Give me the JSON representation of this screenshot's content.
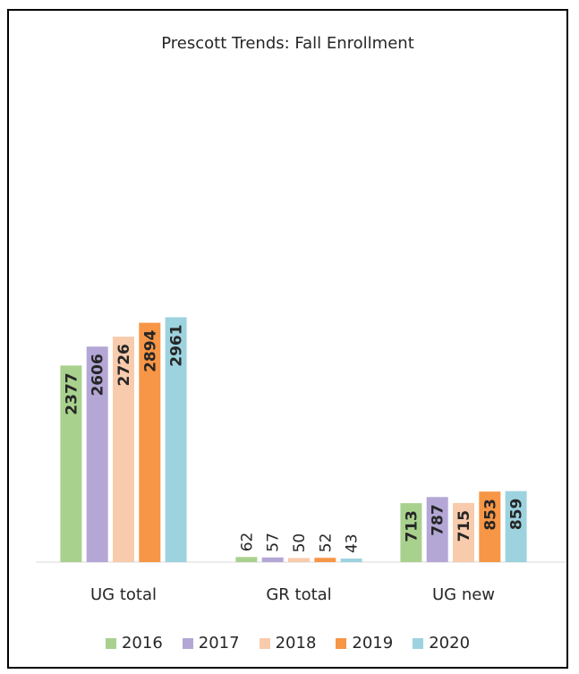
{
  "chart_data": {
    "type": "bar",
    "title": "Prescott Trends: Fall Enrollment",
    "categories": [
      "UG total",
      "GR total",
      "UG new"
    ],
    "series": [
      {
        "name": "2016",
        "color": "#a9d18e",
        "values": [
          2377,
          62,
          713
        ]
      },
      {
        "name": "2017",
        "color": "#b4a7d6",
        "values": [
          2606,
          57,
          787
        ]
      },
      {
        "name": "2018",
        "color": "#f8cbad",
        "values": [
          2726,
          50,
          715
        ]
      },
      {
        "name": "2019",
        "color": "#f79646",
        "values": [
          2894,
          52,
          853
        ]
      },
      {
        "name": "2020",
        "color": "#9dd3df",
        "values": [
          2961,
          43,
          859
        ]
      }
    ],
    "ylim": [
      0,
      6500
    ],
    "grid": false,
    "legend": "bottom",
    "data_labels": "inside-end-rotated"
  }
}
